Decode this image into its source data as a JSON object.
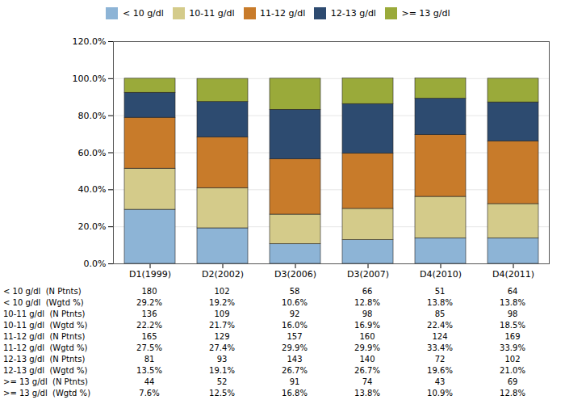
{
  "chart_data": {
    "type": "bar",
    "stacked": true,
    "categories": [
      "D1(1999)",
      "D2(2002)",
      "D3(2006)",
      "D3(2007)",
      "D4(2010)",
      "D4(2011)"
    ],
    "series": [
      {
        "name": "< 10 g/dl",
        "color": "#8DB4D6",
        "values": [
          29.2,
          19.2,
          10.6,
          12.8,
          13.8,
          13.8
        ]
      },
      {
        "name": "10-11 g/dl",
        "color": "#D4CB8A",
        "values": [
          22.2,
          21.7,
          16.0,
          16.9,
          22.4,
          18.5
        ]
      },
      {
        "name": "11-12 g/dl",
        "color": "#C87B2A",
        "values": [
          27.5,
          27.4,
          29.9,
          29.9,
          33.4,
          33.9
        ]
      },
      {
        "name": "12-13 g/dl",
        "color": "#2D4B70",
        "values": [
          13.5,
          19.1,
          26.7,
          26.7,
          19.6,
          21.0
        ]
      },
      {
        "name": ">= 13 g/dl",
        "color": "#9AAA3A",
        "values": [
          7.6,
          12.5,
          16.8,
          13.8,
          10.9,
          12.8
        ]
      }
    ],
    "ylim": [
      0,
      120
    ],
    "yticks": [
      {
        "value": 0,
        "label": "0.0%"
      },
      {
        "value": 20,
        "label": "20.0%"
      },
      {
        "value": 40,
        "label": "40.0%"
      },
      {
        "value": 60,
        "label": "60.0%"
      },
      {
        "value": 80,
        "label": "80.0%"
      },
      {
        "value": 100,
        "label": "100.0%"
      },
      {
        "value": 120,
        "label": "120.0%"
      }
    ],
    "grid": true,
    "legend": "top",
    "table": {
      "row_labels": [
        "< 10 g/dl  (N Ptnts)",
        "< 10 g/dl  (Wgtd %)",
        "10-11 g/dl  (N Ptnts)",
        "10-11 g/dl  (Wgtd %)",
        "11-12 g/dl  (N Ptnts)",
        "11-12 g/dl  (Wgtd %)",
        "12-13 g/dl  (N Ptnts)",
        "12-13 g/dl  (Wgtd %)",
        ">= 13 g/dl  (N Ptnts)",
        ">= 13 g/dl  (Wgtd %)"
      ],
      "rows": [
        [
          "180",
          "102",
          "58",
          "66",
          "51",
          "64"
        ],
        [
          "29.2%",
          "19.2%",
          "10.6%",
          "12.8%",
          "13.8%",
          "13.8%"
        ],
        [
          "136",
          "109",
          "92",
          "98",
          "85",
          "98"
        ],
        [
          "22.2%",
          "21.7%",
          "16.0%",
          "16.9%",
          "22.4%",
          "18.5%"
        ],
        [
          "165",
          "129",
          "157",
          "160",
          "124",
          "169"
        ],
        [
          "27.5%",
          "27.4%",
          "29.9%",
          "29.9%",
          "33.4%",
          "33.9%"
        ],
        [
          "81",
          "93",
          "143",
          "140",
          "72",
          "102"
        ],
        [
          "13.5%",
          "19.1%",
          "26.7%",
          "26.7%",
          "19.6%",
          "21.0%"
        ],
        [
          "44",
          "52",
          "91",
          "74",
          "43",
          "69"
        ],
        [
          "7.6%",
          "12.5%",
          "16.8%",
          "13.8%",
          "10.9%",
          "12.8%"
        ]
      ]
    }
  }
}
